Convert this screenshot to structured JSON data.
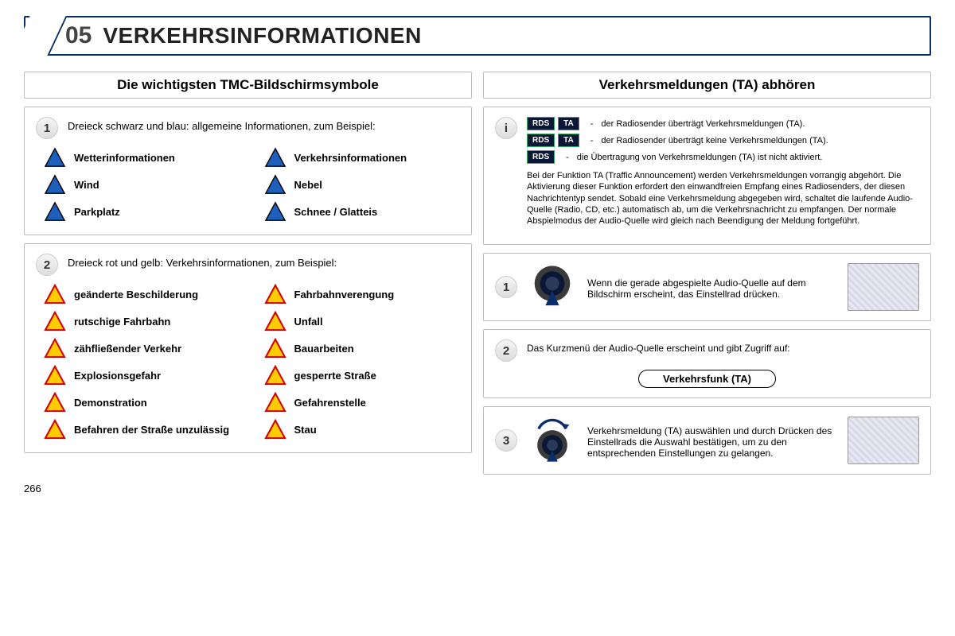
{
  "header": {
    "chapter_num": "05",
    "title": "VERKEHRSINFORMATIONEN"
  },
  "page_number": "266",
  "left_column": {
    "title": "Die wichtigsten TMC-Bildschirmsymbole",
    "section1": {
      "badge": "1",
      "intro": "Dreieck schwarz und blau: allgemeine Informationen, zum Beispiel:",
      "items": [
        {
          "label": "Wetterinformationen"
        },
        {
          "label": "Verkehrsinformationen"
        },
        {
          "label": "Wind"
        },
        {
          "label": "Nebel"
        },
        {
          "label": "Parkplatz"
        },
        {
          "label": "Schnee / Glatteis"
        }
      ]
    },
    "section2": {
      "badge": "2",
      "intro": "Dreieck rot und gelb: Verkehrsinformationen, zum Beispiel:",
      "items": [
        {
          "label": "geänderte Beschilderung"
        },
        {
          "label": "Fahrbahnverengung"
        },
        {
          "label": "rutschige Fahrbahn"
        },
        {
          "label": "Unfall"
        },
        {
          "label": "zähfließender Verkehr"
        },
        {
          "label": "Bauarbeiten"
        },
        {
          "label": "Explosionsgefahr"
        },
        {
          "label": "gesperrte Straße"
        },
        {
          "label": "Demonstration"
        },
        {
          "label": "Gefahrenstelle"
        },
        {
          "label": "Befahren der Straße unzulässig"
        },
        {
          "label": "Stau"
        }
      ]
    }
  },
  "right_column": {
    "title": "Verkehrsmeldungen (TA) abhören",
    "info": {
      "badge": "i",
      "rds_rows": [
        {
          "tags": [
            "RDS",
            "TA"
          ],
          "desc": "der Radiosender überträgt Verkehrsmeldungen (TA)."
        },
        {
          "tags": [
            "RDS",
            "TA"
          ],
          "desc": "der Radiosender überträgt keine Verkehrsmeldungen (TA)."
        },
        {
          "tags": [
            "RDS"
          ],
          "desc": "die Übertragung von Verkehrsmeldungen (TA) ist nicht aktiviert."
        }
      ],
      "body": "Bei der Funktion TA (Traffic Announcement) werden Verkehrsmeldungen vorrangig abgehört. Die Aktivierung dieser Funktion erfordert den einwandfreien Empfang eines Radiosenders, der diesen Nachrichtentyp sendet. Sobald eine Verkehrsmeldung abgegeben wird, schaltet die laufende Audio-Quelle (Radio, CD, etc.) automatisch ab, um die Verkehrsnachricht zu empfangen. Der normale Abspielmodus der Audio-Quelle wird gleich nach Beendigung der Meldung fortgeführt."
    },
    "step1": {
      "badge": "1",
      "text": "Wenn die gerade abgespielte Audio-Quelle auf dem Bildschirm erscheint, das Einstellrad drücken."
    },
    "step2": {
      "badge": "2",
      "text": "Das Kurzmenü der Audio-Quelle erscheint und gibt Zugriff auf:",
      "option": "Verkehrsfunk (TA)"
    },
    "step3": {
      "badge": "3",
      "text": "Verkehrsmeldung (TA) auswählen und durch Drücken des Einstellrads die Auswahl bestätigen, um zu den entsprechenden Einstellungen zu gelangen."
    }
  }
}
